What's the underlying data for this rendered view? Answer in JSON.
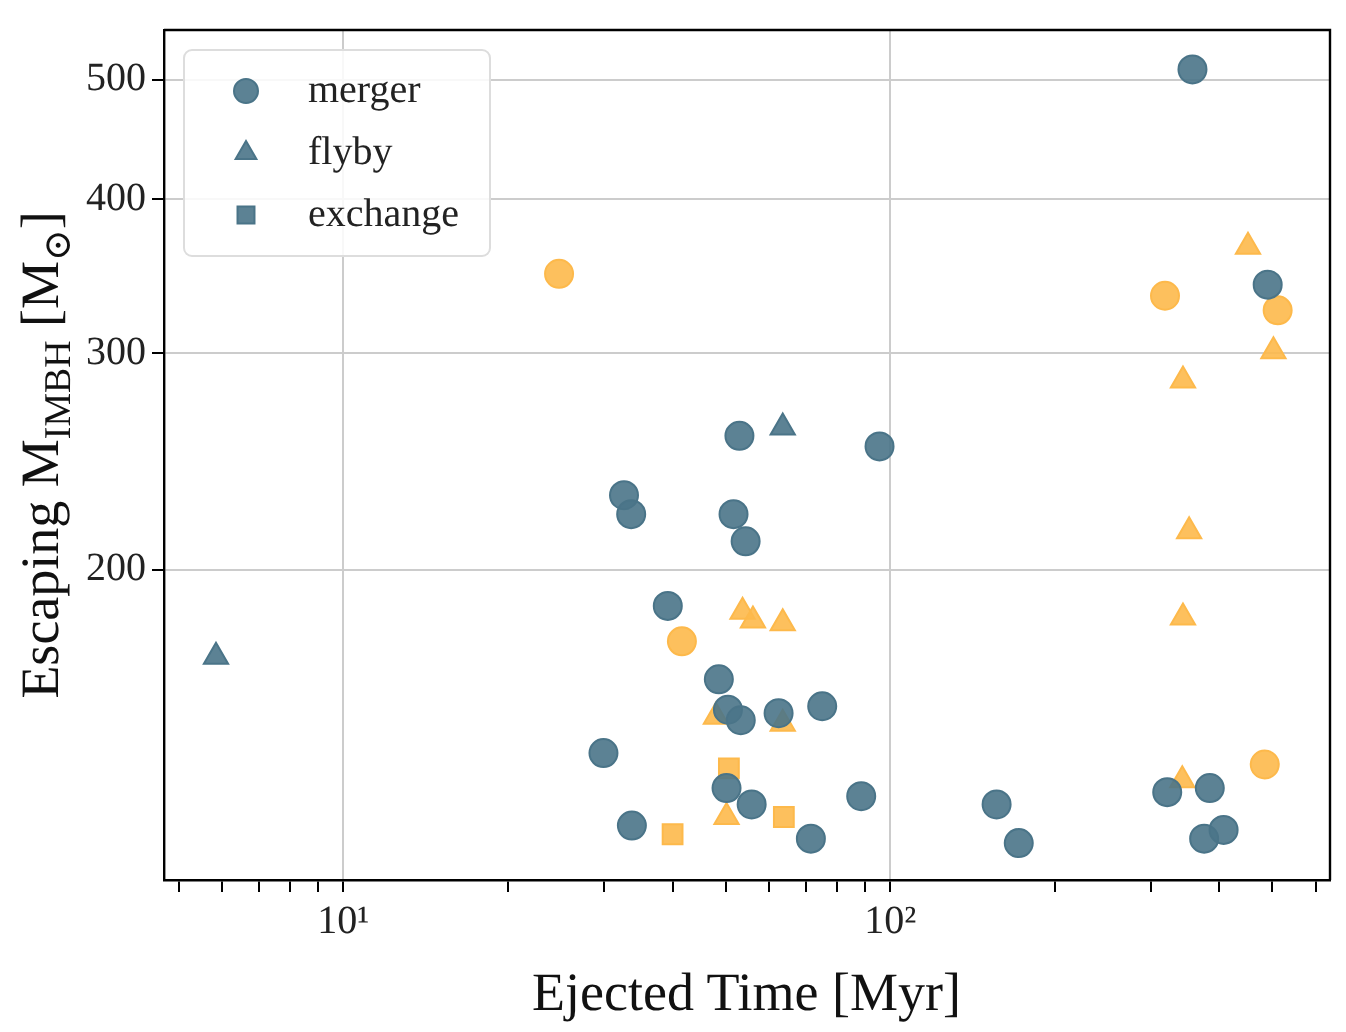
{
  "chart_data": {
    "type": "scatter",
    "xlabel": "Ejected Time [Myr]",
    "ylabel": "Escaping M$_{IMBH}$ [M$_{⊙}$]",
    "log": "xy",
    "grid": true,
    "legend": "top left",
    "xlim": [
      4.7,
      637
    ],
    "ylim": [
      112,
      549
    ],
    "xticks": [
      {
        "value": 5,
        "label": null
      },
      {
        "value": 6,
        "label": null
      },
      {
        "value": 7,
        "label": null
      },
      {
        "value": 8,
        "label": null
      },
      {
        "value": 9,
        "label": null
      },
      {
        "value": 10,
        "label": "10¹"
      },
      {
        "value": 20,
        "label": null
      },
      {
        "value": 30,
        "label": null
      },
      {
        "value": 40,
        "label": null
      },
      {
        "value": 50,
        "label": null
      },
      {
        "value": 60,
        "label": null
      },
      {
        "value": 70,
        "label": null
      },
      {
        "value": 80,
        "label": null
      },
      {
        "value": 90,
        "label": null
      },
      {
        "value": 100,
        "label": "10²"
      },
      {
        "value": 200,
        "label": null
      },
      {
        "value": 300,
        "label": null
      },
      {
        "value": 400,
        "label": null
      },
      {
        "value": 500,
        "label": null
      },
      {
        "value": 600,
        "label": null
      }
    ],
    "yticks": [
      200,
      300,
      400,
      500
    ],
    "series": [
      {
        "name": "merger",
        "marker": "circle",
        "color": "#4a7488",
        "x": [
          357,
          490,
          53.0,
          95.6,
          32.6,
          33.6,
          51.7,
          54.4,
          39.2,
          48.6,
          50.5,
          53.3,
          62.5,
          75.1,
          29.9,
          50.2,
          55.8,
          33.7,
          71.6,
          88.5,
          156.5,
          171.8,
          321,
          384,
          375,
          407
        ],
        "values": [
          510,
          341,
          257,
          252,
          230,
          222,
          222,
          211,
          187,
          163,
          154,
          151,
          153,
          155,
          142,
          133,
          129,
          124,
          121,
          131,
          129,
          120,
          132,
          133,
          121,
          123
        ]
      },
      {
        "name": "flyby",
        "marker": "triangle",
        "color": "#4a7488",
        "x": [
          63.6,
          5.85
        ],
        "values": [
          261,
          170
        ]
      },
      {
        "name": "exchange",
        "marker": "square",
        "color": "#4a7488"
      },
      {
        "marker": "circle",
        "color": "#fdb94b",
        "x": [
          24.8,
          318,
          511,
          41.6,
          484
        ],
        "values": [
          348,
          334,
          325,
          175,
          139
        ]
      },
      {
        "marker": "triangle",
        "color": "#fdb94b",
        "x": [
          451,
          502,
          343,
          53.7,
          56.1,
          63.6,
          48.0,
          63.6,
          50.2,
          352,
          343,
          342
        ],
        "values": [
          366,
          301,
          285,
          185,
          182,
          181,
          152,
          150,
          126,
          215,
          183,
          135
        ]
      },
      {
        "marker": "square",
        "color": "#fdb94b",
        "x": [
          50.7,
          40.0,
          63.9
        ],
        "values": [
          138,
          122,
          126
        ]
      }
    ]
  }
}
